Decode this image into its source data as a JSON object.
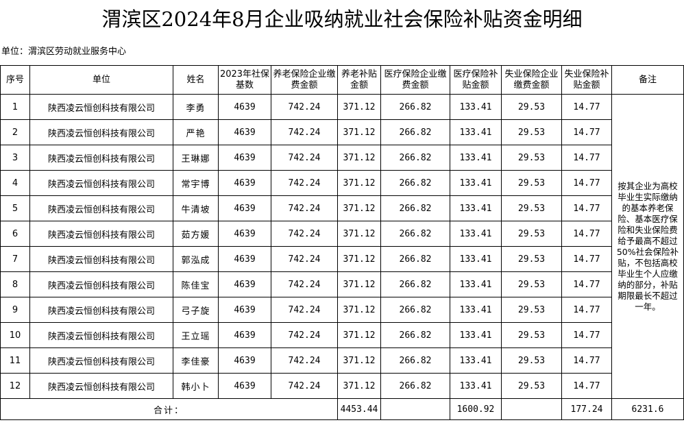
{
  "title": "渭滨区2024年8月企业吸纳就业社会保险补贴资金明细",
  "unit_label": "单位：渭滨区劳动就业服务中心",
  "headers": {
    "seq": "序号",
    "company": "单位",
    "name": "姓名",
    "base": "2023年社保基数",
    "pension_pay": "养老保险企业缴费金额",
    "pension_sub": "养老补贴金额",
    "medical_pay": "医疗保险企业缴费金额",
    "medical_sub": "医疗保险补贴金额",
    "unemp_pay": "失业保险企业缴费金额",
    "unemp_sub": "失业保险补贴金额",
    "remark": "备注"
  },
  "rows": [
    {
      "seq": "1",
      "company": "陕西凌云恒创科技有限公司",
      "name": "李勇",
      "base": "4639",
      "pension_pay": "742.24",
      "pension_sub": "371.12",
      "medical_pay": "266.82",
      "medical_sub": "133.41",
      "unemp_pay": "29.53",
      "unemp_sub": "14.77"
    },
    {
      "seq": "2",
      "company": "陕西凌云恒创科技有限公司",
      "name": "严艳",
      "base": "4639",
      "pension_pay": "742.24",
      "pension_sub": "371.12",
      "medical_pay": "266.82",
      "medical_sub": "133.41",
      "unemp_pay": "29.53",
      "unemp_sub": "14.77"
    },
    {
      "seq": "3",
      "company": "陕西凌云恒创科技有限公司",
      "name": "王琳娜",
      "base": "4639",
      "pension_pay": "742.24",
      "pension_sub": "371.12",
      "medical_pay": "266.82",
      "medical_sub": "133.41",
      "unemp_pay": "29.53",
      "unemp_sub": "14.77"
    },
    {
      "seq": "4",
      "company": "陕西凌云恒创科技有限公司",
      "name": "常宇博",
      "base": "4639",
      "pension_pay": "742.24",
      "pension_sub": "371.12",
      "medical_pay": "266.82",
      "medical_sub": "133.41",
      "unemp_pay": "29.53",
      "unemp_sub": "14.77"
    },
    {
      "seq": "5",
      "company": "陕西凌云恒创科技有限公司",
      "name": "牛清坡",
      "base": "4639",
      "pension_pay": "742.24",
      "pension_sub": "371.12",
      "medical_pay": "266.82",
      "medical_sub": "133.41",
      "unemp_pay": "29.53",
      "unemp_sub": "14.77"
    },
    {
      "seq": "6",
      "company": "陕西凌云恒创科技有限公司",
      "name": "茹方媛",
      "base": "4639",
      "pension_pay": "742.24",
      "pension_sub": "371.12",
      "medical_pay": "266.82",
      "medical_sub": "133.41",
      "unemp_pay": "29.53",
      "unemp_sub": "14.77"
    },
    {
      "seq": "7",
      "company": "陕西凌云恒创科技有限公司",
      "name": "郭泓成",
      "base": "4639",
      "pension_pay": "742.24",
      "pension_sub": "371.12",
      "medical_pay": "266.82",
      "medical_sub": "133.41",
      "unemp_pay": "29.53",
      "unemp_sub": "14.77"
    },
    {
      "seq": "8",
      "company": "陕西凌云恒创科技有限公司",
      "name": "陈佳宝",
      "base": "4639",
      "pension_pay": "742.24",
      "pension_sub": "371.12",
      "medical_pay": "266.82",
      "medical_sub": "133.41",
      "unemp_pay": "29.53",
      "unemp_sub": "14.77"
    },
    {
      "seq": "9",
      "company": "陕西凌云恒创科技有限公司",
      "name": "弓子旋",
      "base": "4639",
      "pension_pay": "742.24",
      "pension_sub": "371.12",
      "medical_pay": "266.82",
      "medical_sub": "133.41",
      "unemp_pay": "29.53",
      "unemp_sub": "14.77"
    },
    {
      "seq": "10",
      "company": "陕西凌云恒创科技有限公司",
      "name": "王立瑶",
      "base": "4639",
      "pension_pay": "742.24",
      "pension_sub": "371.12",
      "medical_pay": "266.82",
      "medical_sub": "133.41",
      "unemp_pay": "29.53",
      "unemp_sub": "14.77"
    },
    {
      "seq": "11",
      "company": "陕西凌云恒创科技有限公司",
      "name": "李佳豪",
      "base": "4639",
      "pension_pay": "742.24",
      "pension_sub": "371.12",
      "medical_pay": "266.82",
      "medical_sub": "133.41",
      "unemp_pay": "29.53",
      "unemp_sub": "14.77"
    },
    {
      "seq": "12",
      "company": "陕西凌云恒创科技有限公司",
      "name": "韩小卜",
      "base": "4639",
      "pension_pay": "742.24",
      "pension_sub": "371.12",
      "medical_pay": "266.82",
      "medical_sub": "133.41",
      "unemp_pay": "29.53",
      "unemp_sub": "14.77"
    }
  ],
  "remark_text": "按其企业为高校毕业生实际缴纳的基本养老保险、基本医疗保险和失业保险费给予最高不超过50%社会保险补贴，不包括高校毕业生个人应缴纳的部分，补贴期限最长不超过一年。",
  "totals": {
    "label": "合计：",
    "pension_sub": "4453.44",
    "medical_sub": "1600.92",
    "unemp_sub": "177.24",
    "grand": "6231.6"
  }
}
